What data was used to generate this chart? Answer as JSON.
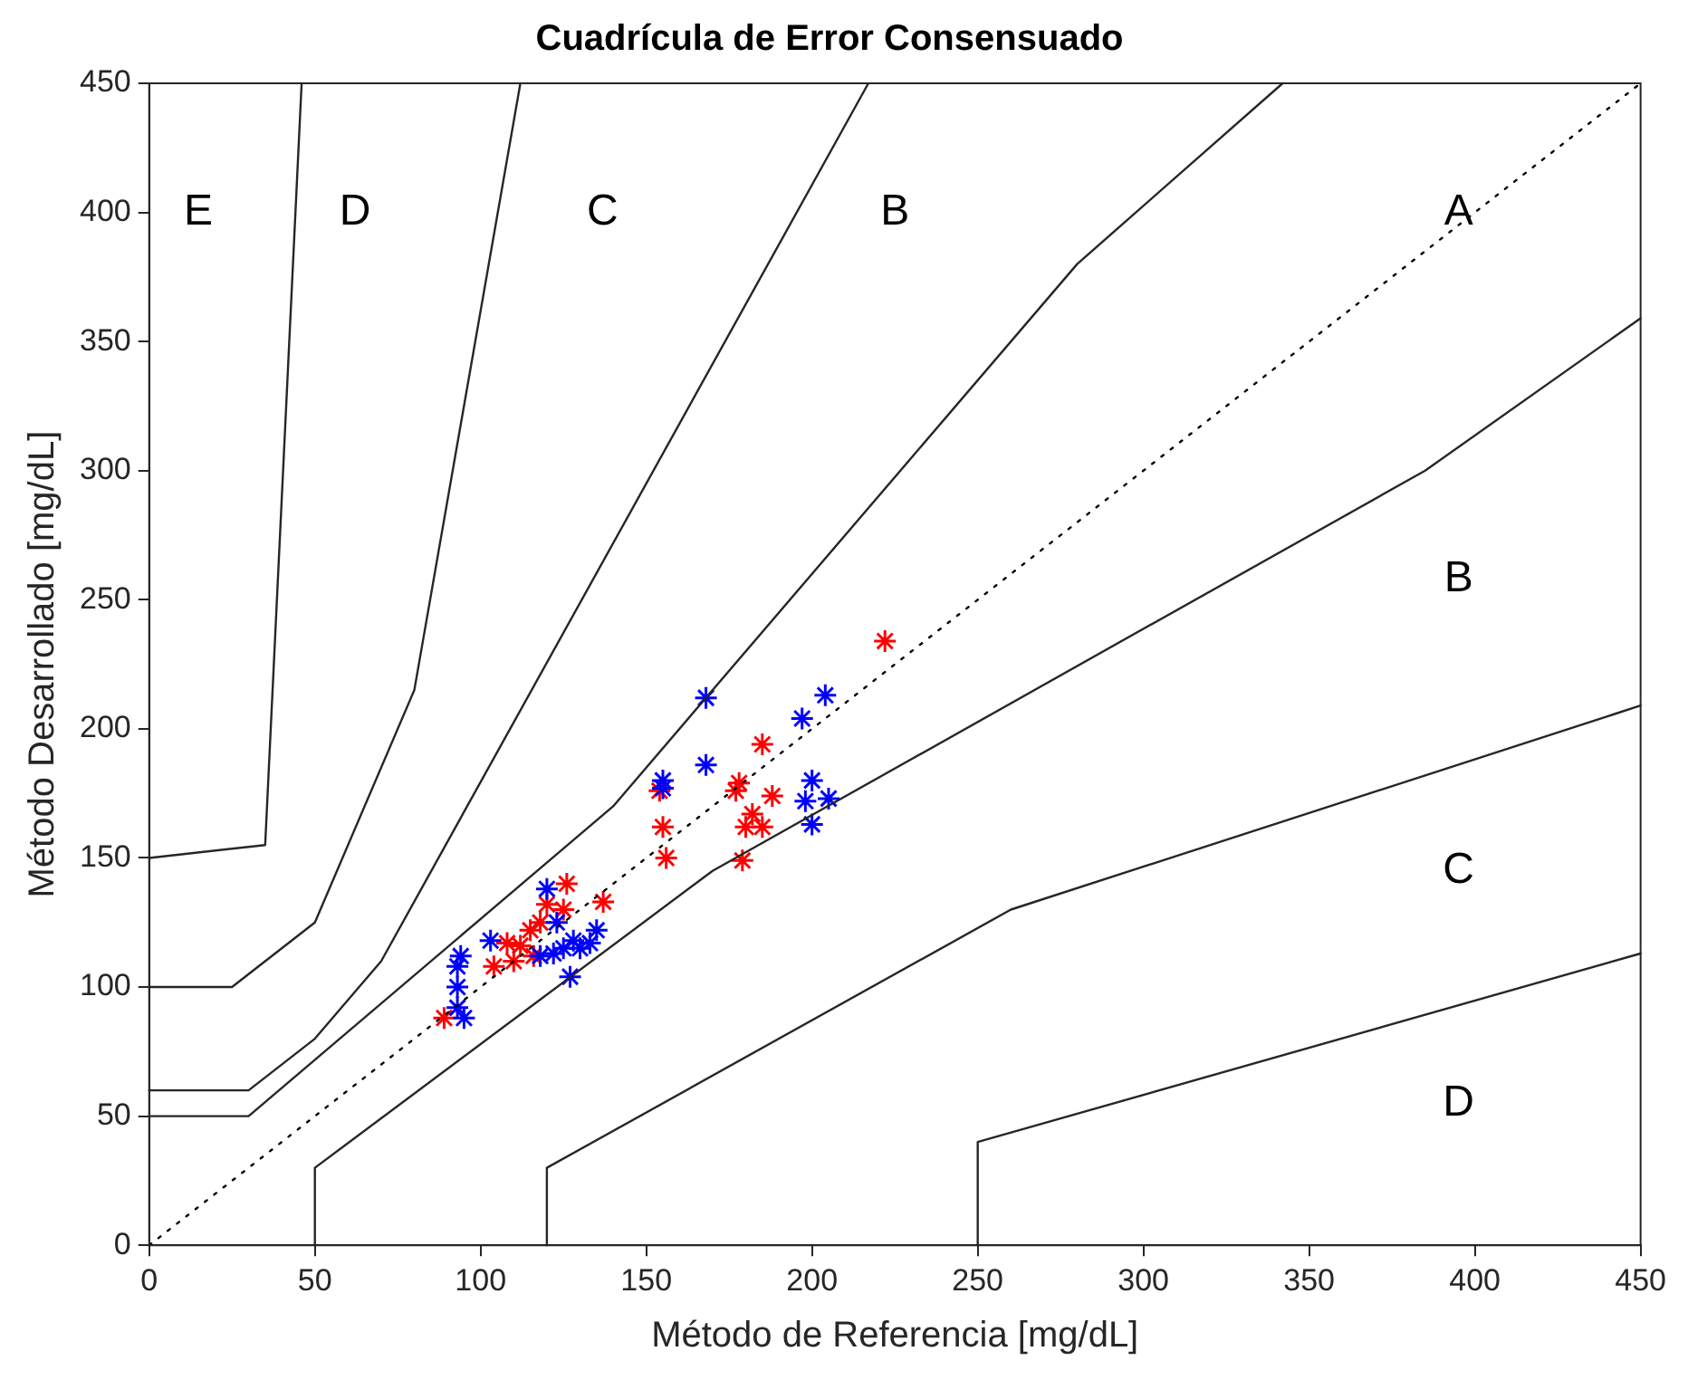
{
  "chart_data": {
    "type": "scatter",
    "title": "Cuadrícula de Error Consensuado",
    "xlabel": "Método de Referencia [mg/dL]",
    "ylabel": "Método Desarrollado [mg/dL]",
    "xlim": [
      0,
      450
    ],
    "ylim": [
      0,
      450
    ],
    "xticks": [
      0,
      50,
      100,
      150,
      200,
      250,
      300,
      350,
      400,
      450
    ],
    "yticks": [
      0,
      50,
      100,
      150,
      200,
      250,
      300,
      350,
      400,
      450
    ],
    "grid": false,
    "legend": false,
    "series": [
      {
        "type": "line",
        "color": "#000000",
        "line_style": "dotted",
        "x": [
          0,
          450
        ],
        "values": [
          0,
          450
        ]
      },
      {
        "type": "line",
        "color": "#262626",
        "line_style": "solid",
        "x": [
          0,
          30,
          140,
          280,
          342
        ],
        "values": [
          50,
          50,
          170,
          380,
          450
        ]
      },
      {
        "type": "line",
        "color": "#262626",
        "line_style": "solid",
        "x": [
          50,
          50,
          170,
          385,
          450
        ],
        "values": [
          0,
          30,
          145,
          300,
          359
        ]
      },
      {
        "type": "line",
        "color": "#262626",
        "line_style": "solid",
        "x": [
          0,
          30,
          50,
          70,
          217
        ],
        "values": [
          60,
          60,
          80,
          110,
          450
        ]
      },
      {
        "type": "line",
        "color": "#262626",
        "line_style": "solid",
        "x": [
          120,
          120,
          260,
          450
        ],
        "values": [
          0,
          30,
          130,
          209
        ]
      },
      {
        "type": "line",
        "color": "#262626",
        "line_style": "solid",
        "x": [
          0,
          25,
          50,
          80,
          112
        ],
        "values": [
          100,
          100,
          125,
          215,
          450
        ]
      },
      {
        "type": "line",
        "color": "#262626",
        "line_style": "solid",
        "x": [
          250,
          250,
          450
        ],
        "values": [
          0,
          40,
          113
        ]
      },
      {
        "type": "line",
        "color": "#262626",
        "line_style": "solid",
        "x": [
          0,
          35,
          46
        ],
        "values": [
          150,
          155,
          450
        ]
      },
      {
        "type": "scatter",
        "color": "#0000ff",
        "marker": "cross",
        "x": [
          168,
          204,
          197,
          168,
          155,
          155,
          200,
          198,
          205,
          200,
          120,
          103,
          94,
          93,
          93,
          93,
          95,
          125,
          130,
          128,
          122,
          133,
          127,
          118,
          123,
          135
        ],
        "values": [
          212,
          213,
          204,
          186,
          180,
          177,
          180,
          172,
          173,
          163,
          138,
          118,
          112,
          108,
          100,
          92,
          88,
          115,
          115,
          118,
          113,
          117,
          104,
          112,
          125,
          122
        ]
      },
      {
        "type": "scatter",
        "color": "#ff0000",
        "marker": "cross",
        "x": [
          222,
          154,
          185,
          178,
          177,
          188,
          182,
          180,
          185,
          179,
          155,
          156,
          126,
          137,
          120,
          125,
          118,
          112,
          110,
          104,
          116,
          115,
          108,
          89
        ],
        "values": [
          234,
          176,
          194,
          179,
          176,
          174,
          167,
          162,
          162,
          149,
          162,
          150,
          140,
          133,
          132,
          130,
          125,
          116,
          110,
          108,
          112,
          122,
          117,
          88
        ]
      }
    ],
    "annotations": [
      "E",
      "D",
      "C",
      "B",
      "A",
      "B",
      "C",
      "D"
    ]
  }
}
